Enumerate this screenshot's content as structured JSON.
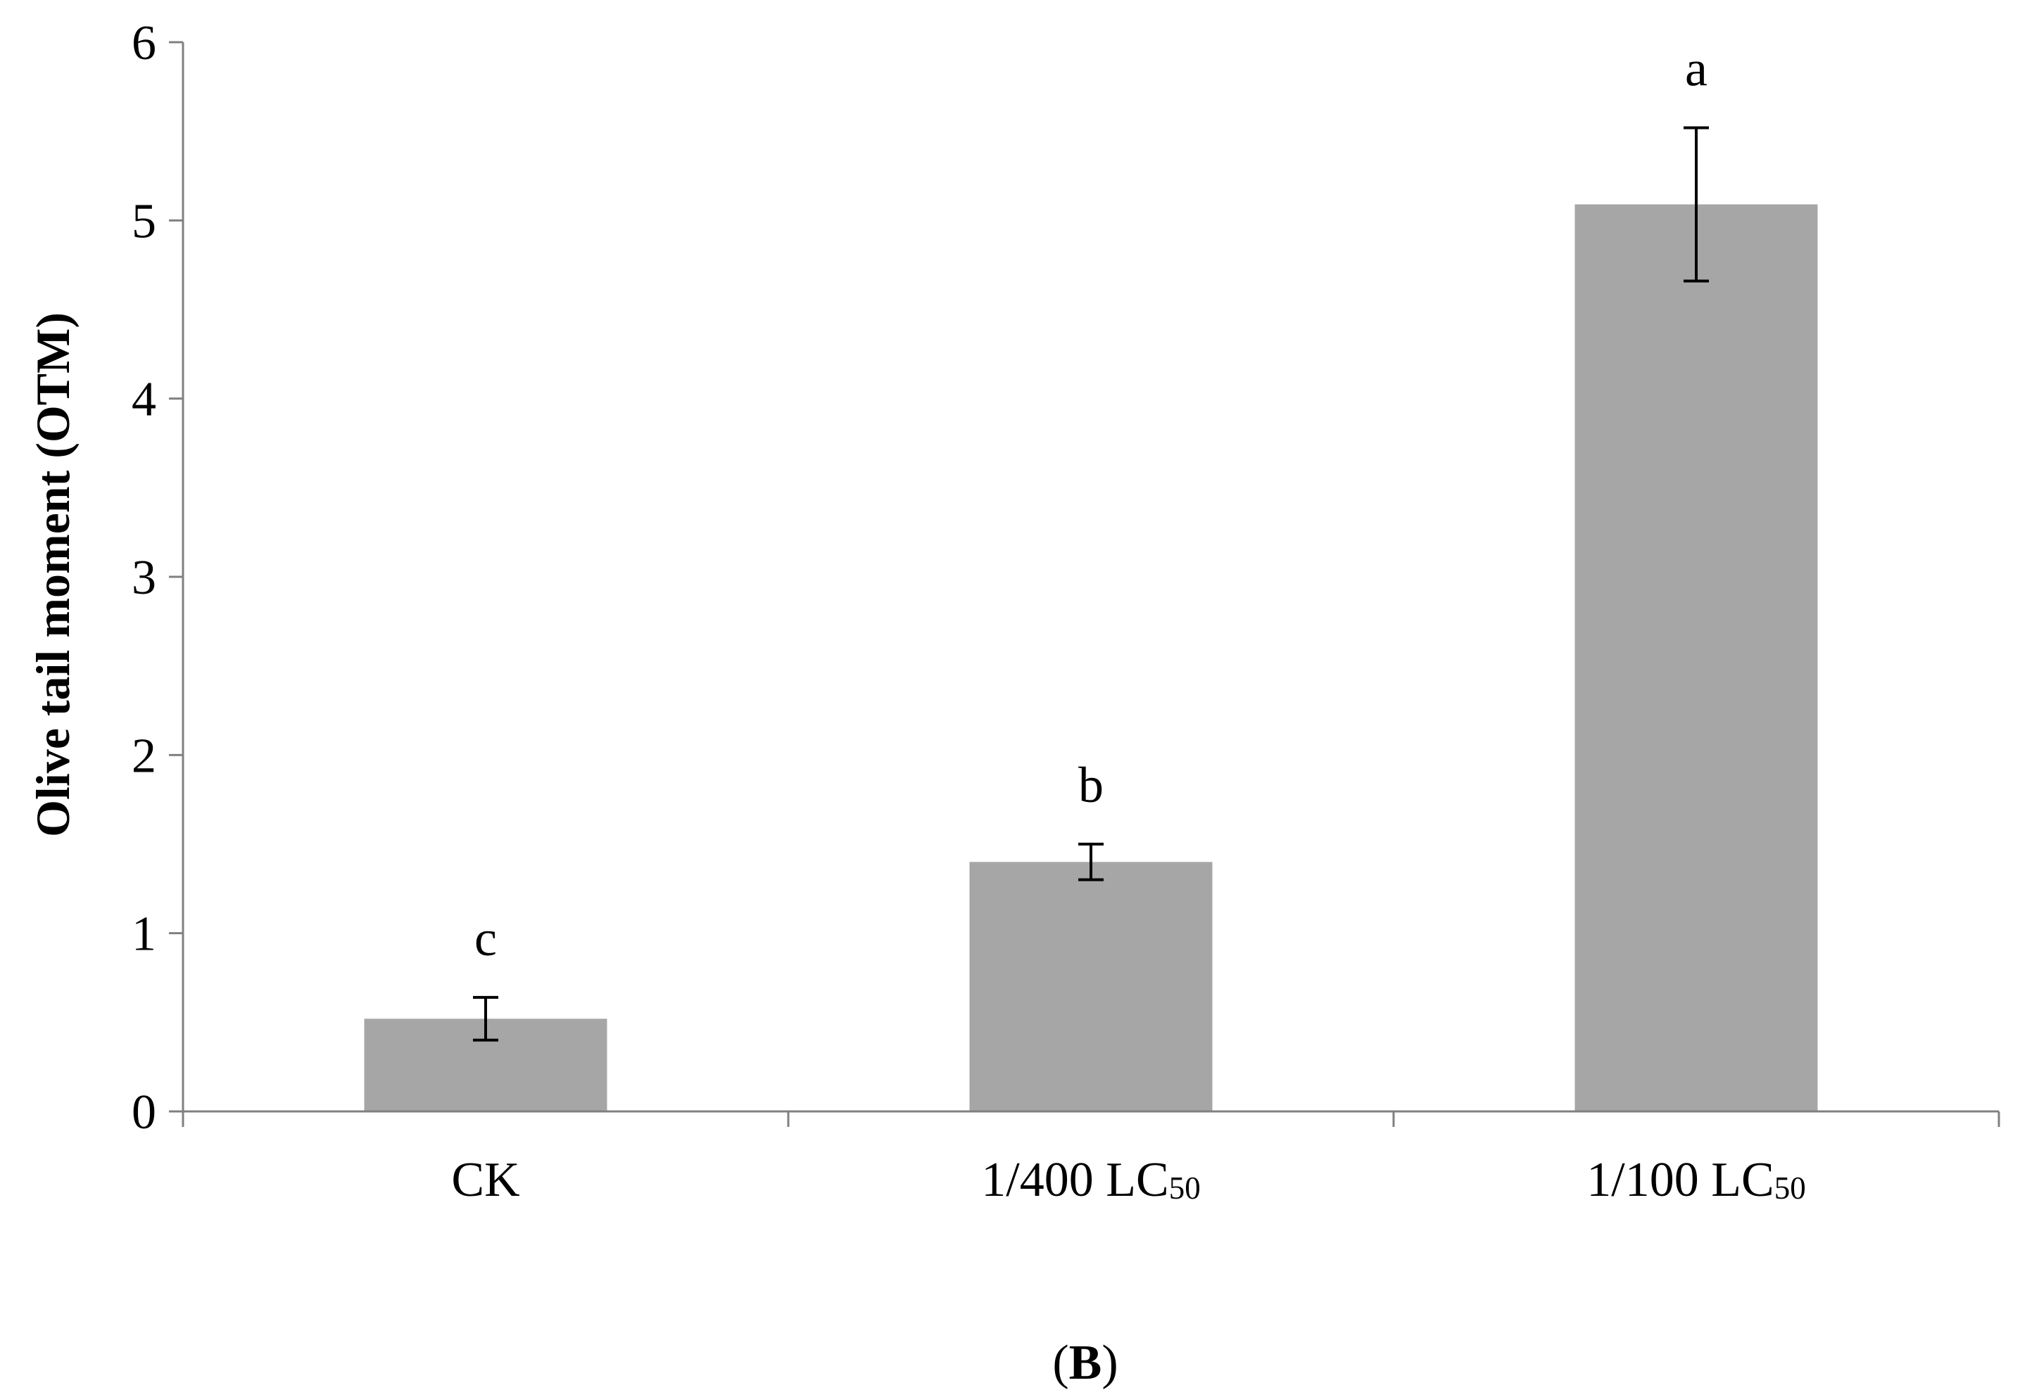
{
  "chart_data": {
    "type": "bar",
    "categories": [
      "CK",
      "1/400 LC50",
      "1/100 LC50"
    ],
    "category_display": [
      {
        "main": "CK",
        "sub": ""
      },
      {
        "main": "1/400 LC",
        "sub": "50"
      },
      {
        "main": "1/100 LC",
        "sub": "50"
      }
    ],
    "values": [
      0.52,
      1.4,
      5.09
    ],
    "errors": [
      0.12,
      0.1,
      0.43
    ],
    "significance_letters": [
      "c",
      "b",
      "a"
    ],
    "ylabel": "Olive tail moment (OTM)",
    "xlabel": "",
    "title": "",
    "ylim": [
      0,
      6
    ],
    "yticks": [
      0,
      1,
      2,
      3,
      4,
      5,
      6
    ],
    "grid": false,
    "bar_color": "#a6a6a6",
    "axis_color": "#808080",
    "error_bar_color": "#000000"
  },
  "panel_label": {
    "open": "(",
    "letter": "B",
    "close": ")"
  }
}
